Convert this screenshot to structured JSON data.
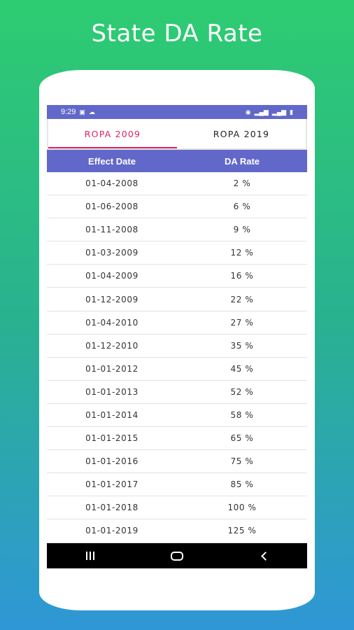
{
  "headline": "State DA Rate",
  "status_bar": {
    "time": "9:29",
    "left_icons": [
      "gallery-icon",
      "cloud-icon"
    ],
    "right_icons": [
      "hotspot-icon",
      "signal-icon",
      "signal-icon",
      "battery-icon"
    ]
  },
  "tabs": [
    {
      "label": "ROPA 2009",
      "active": true
    },
    {
      "label": "ROPA 2019",
      "active": false
    }
  ],
  "table": {
    "headers": {
      "effect_date": "Effect Date",
      "da_rate": "DA Rate"
    },
    "rows": [
      {
        "date": "01-04-2008",
        "rate": "2 %"
      },
      {
        "date": "01-06-2008",
        "rate": "6 %"
      },
      {
        "date": "01-11-2008",
        "rate": "9 %"
      },
      {
        "date": "01-03-2009",
        "rate": "12 %"
      },
      {
        "date": "01-04-2009",
        "rate": "16 %"
      },
      {
        "date": "01-12-2009",
        "rate": "22 %"
      },
      {
        "date": "01-04-2010",
        "rate": "27 %"
      },
      {
        "date": "01-12-2010",
        "rate": "35 %"
      },
      {
        "date": "01-01-2012",
        "rate": "45 %"
      },
      {
        "date": "01-01-2013",
        "rate": "52 %"
      },
      {
        "date": "01-01-2014",
        "rate": "58 %"
      },
      {
        "date": "01-01-2015",
        "rate": "65 %"
      },
      {
        "date": "01-01-2016",
        "rate": "75 %"
      },
      {
        "date": "01-01-2017",
        "rate": "85 %"
      },
      {
        "date": "01-01-2018",
        "rate": "100 %"
      },
      {
        "date": "01-01-2019",
        "rate": "125 %"
      }
    ]
  },
  "nav_bar": {
    "buttons": [
      "recent-apps-icon",
      "home-icon",
      "back-icon"
    ]
  },
  "colors": {
    "accent": "#6268c9",
    "tab_active": "#e0245e"
  }
}
